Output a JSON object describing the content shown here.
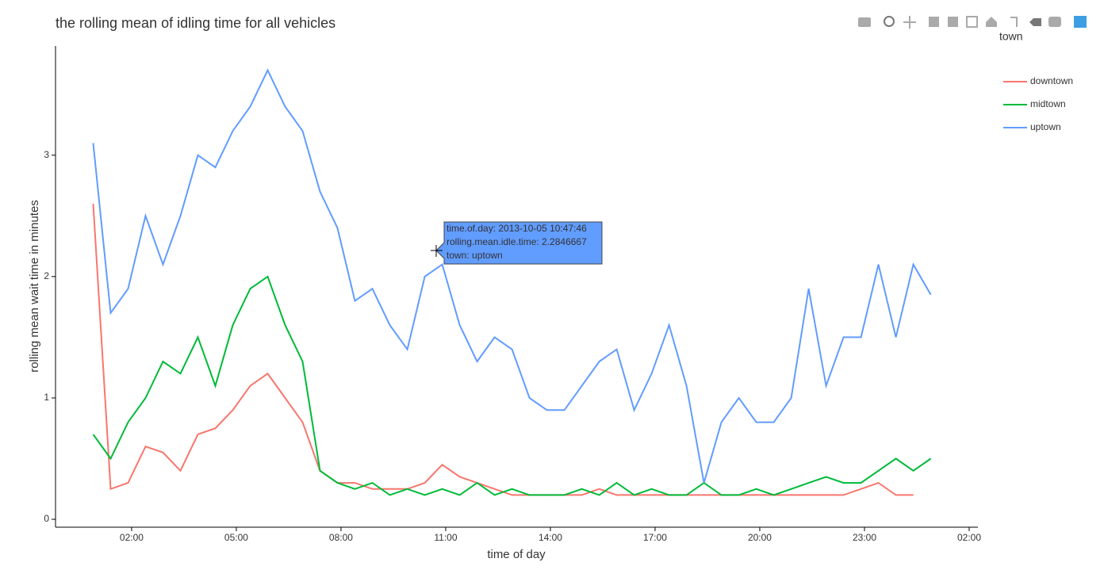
{
  "chart_data": {
    "type": "line",
    "title": "the rolling mean of idling time for all vehicles",
    "xlabel": "time of day",
    "ylabel": "rolling mean wait time in minutes",
    "legend_title": "town",
    "legend_position": "right",
    "x": [
      0.9,
      1.4,
      1.9,
      2.4,
      2.9,
      3.4,
      3.9,
      4.4,
      4.9,
      5.4,
      5.9,
      6.4,
      6.9,
      7.4,
      7.9,
      8.4,
      8.9,
      9.4,
      9.9,
      10.4,
      10.9,
      11.4,
      11.9,
      12.4,
      12.9,
      13.4,
      13.9,
      14.4,
      14.9,
      15.4,
      15.9,
      16.4,
      16.9,
      17.4,
      17.9,
      18.4,
      18.9,
      19.4,
      19.9,
      20.4,
      20.9,
      21.4,
      21.9,
      22.4,
      22.9,
      23.4,
      23.9,
      24.4,
      24.9
    ],
    "series": [
      {
        "name": "downtown",
        "color": "#f8766d",
        "values": [
          2.6,
          0.25,
          0.3,
          0.6,
          0.55,
          0.4,
          0.7,
          0.75,
          0.9,
          1.1,
          1.2,
          1.0,
          0.8,
          0.4,
          0.3,
          0.3,
          0.25,
          0.25,
          0.25,
          0.3,
          0.45,
          0.35,
          0.3,
          0.25,
          0.2,
          0.2,
          0.2,
          0.2,
          0.2,
          0.25,
          0.2,
          0.2,
          0.2,
          0.2,
          0.2,
          0.2,
          0.2,
          0.2,
          0.2,
          0.2,
          0.2,
          0.2,
          0.2,
          0.2,
          0.25,
          0.3,
          0.2,
          0.2,
          null
        ]
      },
      {
        "name": "midtown",
        "color": "#00ba38",
        "values": [
          0.7,
          0.5,
          0.8,
          1.0,
          1.3,
          1.2,
          1.5,
          1.1,
          1.6,
          1.9,
          2.0,
          1.6,
          1.3,
          0.4,
          0.3,
          0.25,
          0.3,
          0.2,
          0.25,
          0.2,
          0.25,
          0.2,
          0.3,
          0.2,
          0.25,
          0.2,
          0.2,
          0.2,
          0.25,
          0.2,
          0.3,
          0.2,
          0.25,
          0.2,
          0.2,
          0.3,
          0.2,
          0.2,
          0.25,
          0.2,
          0.25,
          0.3,
          0.35,
          0.3,
          0.3,
          0.4,
          0.5,
          0.4,
          0.5
        ]
      },
      {
        "name": "uptown",
        "color": "#619cff",
        "values": [
          3.1,
          1.7,
          1.9,
          2.5,
          2.1,
          2.5,
          3.0,
          2.9,
          3.2,
          3.4,
          3.7,
          3.4,
          3.2,
          2.7,
          2.4,
          1.8,
          1.9,
          1.6,
          1.4,
          2.0,
          2.1,
          1.6,
          1.3,
          1.5,
          1.4,
          1.0,
          0.9,
          0.9,
          1.1,
          1.3,
          1.4,
          0.9,
          1.2,
          1.6,
          1.1,
          0.3,
          0.8,
          1.0,
          0.8,
          0.8,
          1.0,
          1.9,
          1.1,
          1.5,
          1.5,
          2.1,
          1.5,
          2.1,
          1.85
        ]
      }
    ],
    "xlim": [
      -0.18,
      26.25
    ],
    "ylim": [
      -0.065,
      3.9
    ],
    "xticks": [
      {
        "value": 2,
        "label": "02:00"
      },
      {
        "value": 5,
        "label": "05:00"
      },
      {
        "value": 8,
        "label": "08:00"
      },
      {
        "value": 11,
        "label": "11:00"
      },
      {
        "value": 14,
        "label": "14:00"
      },
      {
        "value": 17,
        "label": "17:00"
      },
      {
        "value": 20,
        "label": "20:00"
      },
      {
        "value": 23,
        "label": "23:00"
      },
      {
        "value": 26,
        "label": "02:00"
      }
    ],
    "yticks": [
      0,
      1,
      2,
      3
    ],
    "grid": false,
    "tooltip": [
      "time.of.day: 2013-10-05 10:47:46",
      "rolling.mean.idle.time: 2.2846667",
      "town: uptown"
    ]
  }
}
